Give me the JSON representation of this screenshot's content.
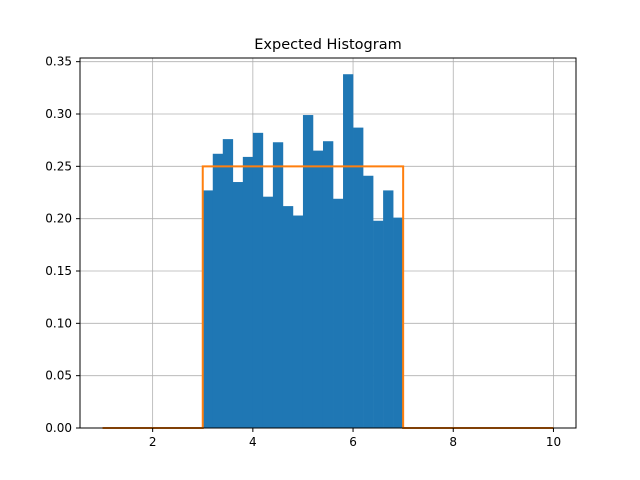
{
  "chart_data": {
    "type": "bar",
    "title": "Expected Histogram",
    "xlabel": "",
    "ylabel": "",
    "xlim": [
      0.55,
      10.45
    ],
    "ylim": [
      0,
      0.3535
    ],
    "grid": true,
    "xticks": [
      2,
      4,
      6,
      8,
      10
    ],
    "yticks": [
      0.0,
      0.05,
      0.1,
      0.15,
      0.2,
      0.25,
      0.3,
      0.35
    ],
    "colors": {
      "bars": "#1f77b4",
      "line": "#ff7f0e",
      "grid": "#b0b0b0"
    },
    "series": [
      {
        "type": "histogram",
        "bin_start": 3.0,
        "bin_width": 0.2,
        "values": [
          0.227,
          0.262,
          0.276,
          0.235,
          0.259,
          0.282,
          0.221,
          0.273,
          0.212,
          0.203,
          0.299,
          0.265,
          0.274,
          0.219,
          0.338,
          0.287,
          0.241,
          0.198,
          0.227,
          0.201
        ]
      },
      {
        "type": "line",
        "x": [
          1,
          3,
          3,
          7,
          7,
          10
        ],
        "y": [
          0,
          0,
          0.25,
          0.25,
          0,
          0
        ]
      }
    ]
  }
}
